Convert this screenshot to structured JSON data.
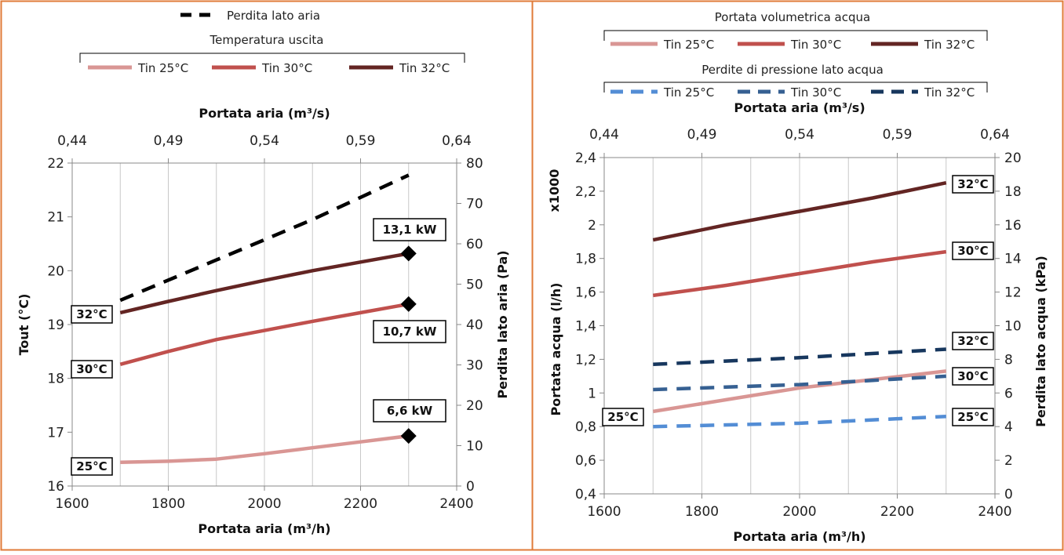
{
  "chart_data": [
    {
      "type": "line",
      "title": "",
      "xlabel": "Portata aria (m³/h)",
      "x2label": "Portata aria (m³/s)",
      "ylabel": "Tout (°C)",
      "y2label": "Perdita lato aria (Pa)",
      "xlim": [
        1600,
        2400
      ],
      "x2lim": [
        0.44,
        0.64
      ],
      "ylim": [
        16,
        22
      ],
      "y2lim": [
        0,
        80
      ],
      "xticks": [
        "1600",
        "1800",
        "2000",
        "2200",
        "2400"
      ],
      "x2ticks": [
        "0,44",
        "0,49",
        "0,54",
        "0,59",
        "0,64"
      ],
      "yticks": [
        "16",
        "17",
        "18",
        "19",
        "20",
        "21",
        "22"
      ],
      "y2ticks": [
        "0",
        "10",
        "20",
        "30",
        "40",
        "50",
        "60",
        "70",
        "80"
      ],
      "legend_top": {
        "entries": [
          "Perdita lato aria"
        ]
      },
      "legend_group": {
        "title": "Temperatura uscita",
        "entries": [
          "Tin 25°C",
          "Tin 30°C",
          "Tin 32°C"
        ]
      },
      "series": [
        {
          "name": "Tin 25°C",
          "axis": "left",
          "color": "#D99694",
          "dashed": false,
          "x": [
            1700,
            1800,
            1900,
            2000,
            2100,
            2200,
            2300
          ],
          "y": [
            16.44,
            16.46,
            16.5,
            16.6,
            16.71,
            16.82,
            16.93
          ]
        },
        {
          "name": "Tin 30°C",
          "axis": "left",
          "color": "#C0504D",
          "dashed": false,
          "x": [
            1700,
            1800,
            1900,
            2000,
            2100,
            2200,
            2300
          ],
          "y": [
            18.26,
            18.5,
            18.72,
            18.89,
            19.06,
            19.22,
            19.38
          ]
        },
        {
          "name": "Tin 32°C",
          "axis": "left",
          "color": "#632523",
          "dashed": false,
          "x": [
            1700,
            1800,
            1900,
            2000,
            2100,
            2200,
            2300
          ],
          "y": [
            19.22,
            19.43,
            19.63,
            19.82,
            20.0,
            20.16,
            20.32
          ]
        },
        {
          "name": "Perdita lato aria",
          "axis": "right",
          "color": "#000000",
          "dashed": true,
          "x": [
            1700,
            1900,
            2100,
            2300
          ],
          "y": [
            46,
            56,
            66,
            77
          ]
        }
      ],
      "markers": [
        {
          "x": 2300,
          "y": 20.32,
          "label": "13,1 kW"
        },
        {
          "x": 2300,
          "y": 19.38,
          "label": "10,7 kW"
        },
        {
          "x": 2300,
          "y": 16.93,
          "label": "6,6 kW"
        }
      ],
      "line_labels": [
        {
          "text": "32°C",
          "x": 1700,
          "y": 19.22
        },
        {
          "text": "30°C",
          "x": 1700,
          "y": 18.26
        },
        {
          "text": "25°C",
          "x": 1700,
          "y": 16.44
        }
      ]
    },
    {
      "type": "line",
      "title": "",
      "xlabel": "Portata aria (m³/h)",
      "x2label": "Portata aria (m³/s)",
      "ylabel": "Portata acqua (l/h)",
      "ylabel_multiplier": "x1000",
      "y2label": "Perdita lato acqua (kPa)",
      "xlim": [
        1600,
        2400
      ],
      "x2lim": [
        0.44,
        0.64
      ],
      "ylim": [
        0.4,
        2.4
      ],
      "y2lim": [
        0,
        20
      ],
      "xticks": [
        "1600",
        "1800",
        "2000",
        "2200",
        "2400"
      ],
      "x2ticks": [
        "0,44",
        "0,49",
        "0,54",
        "0,59",
        "0,64"
      ],
      "yticks": [
        "0,4",
        "0,6",
        "0,8",
        "1",
        "1,2",
        "1,4",
        "1,6",
        "1,8",
        "2",
        "2,2",
        "2,4"
      ],
      "y2ticks": [
        "0",
        "2",
        "4",
        "6",
        "8",
        "10",
        "12",
        "14",
        "16",
        "18",
        "20"
      ],
      "legend_group1": {
        "title": "Portata volumetrica acqua",
        "entries": [
          "Tin 25°C",
          "Tin 30°C",
          "Tin 32°C"
        ]
      },
      "legend_group2": {
        "title": "Perdite di pressione lato acqua",
        "entries": [
          "Tin 25°C",
          "Tin 30°C",
          "Tin 32°C"
        ]
      },
      "series": [
        {
          "name": "Tin 25°C",
          "group": "Portata volumetrica acqua",
          "axis": "left",
          "color": "#D99694",
          "dashed": false,
          "x": [
            1700,
            1850,
            2000,
            2150,
            2300
          ],
          "y": [
            0.89,
            0.96,
            1.03,
            1.08,
            1.13
          ]
        },
        {
          "name": "Tin 30°C",
          "group": "Portata volumetrica acqua",
          "axis": "left",
          "color": "#C0504D",
          "dashed": false,
          "x": [
            1700,
            1850,
            2000,
            2150,
            2300
          ],
          "y": [
            1.58,
            1.64,
            1.71,
            1.78,
            1.84
          ]
        },
        {
          "name": "Tin 32°C",
          "group": "Portata volumetrica acqua",
          "axis": "left",
          "color": "#632523",
          "dashed": false,
          "x": [
            1700,
            1850,
            2000,
            2150,
            2300
          ],
          "y": [
            1.91,
            2.0,
            2.08,
            2.16,
            2.25
          ]
        },
        {
          "name": "Tin 25°C",
          "group": "Perdite di pressione lato acqua",
          "axis": "right",
          "color": "#538DD5",
          "dashed": true,
          "x": [
            1700,
            2000,
            2300
          ],
          "y": [
            4.0,
            4.2,
            4.6
          ]
        },
        {
          "name": "Tin 30°C",
          "group": "Perdite di pressione lato acqua",
          "axis": "right",
          "color": "#366092",
          "dashed": true,
          "x": [
            1700,
            2000,
            2300
          ],
          "y": [
            6.2,
            6.5,
            7.0
          ]
        },
        {
          "name": "Tin 32°C",
          "group": "Perdite di pressione lato acqua",
          "axis": "right",
          "color": "#17375E",
          "dashed": true,
          "x": [
            1700,
            2000,
            2300
          ],
          "y": [
            7.7,
            8.1,
            8.6
          ]
        }
      ],
      "line_labels": [
        {
          "text": "32°C",
          "side": "end",
          "y": 2.33
        },
        {
          "text": "30°C",
          "side": "end",
          "y": 1.93
        },
        {
          "text": "32°C",
          "side": "end",
          "y": 1.35
        },
        {
          "text": "30°C",
          "side": "end",
          "y": 1.13
        },
        {
          "text": "25°C",
          "side": "end",
          "y": 0.88
        },
        {
          "text": "25°C",
          "side": "start",
          "y": 0.88
        }
      ]
    }
  ]
}
